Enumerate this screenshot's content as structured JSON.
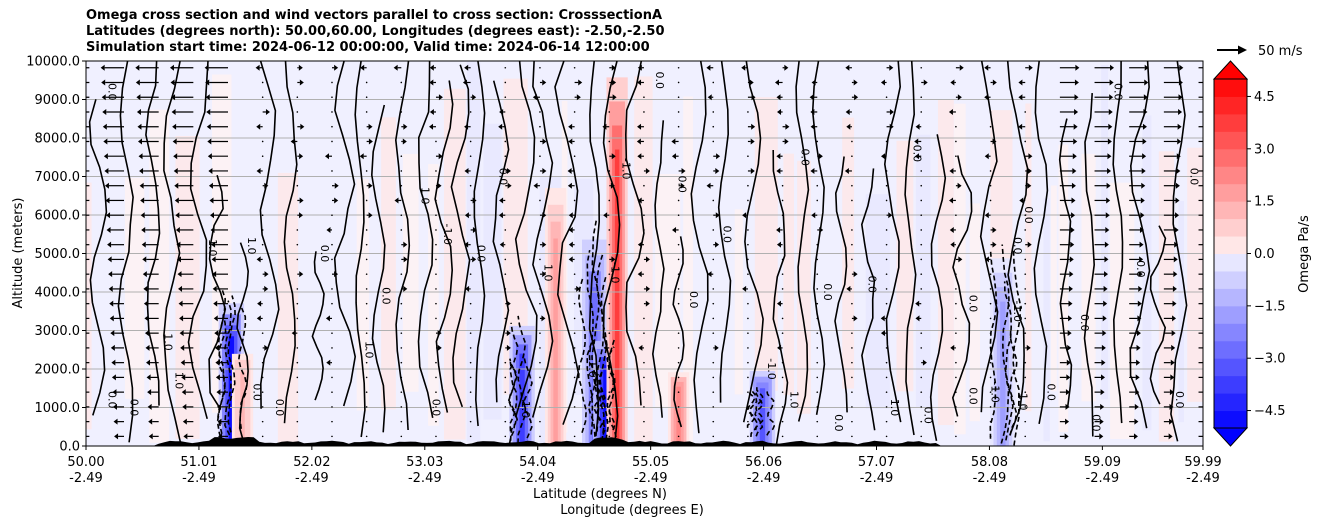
{
  "chart_data": {
    "type": "heatmap",
    "title_lines": [
      "Omega cross section and wind vectors parallel to cross section: CrosssectionA",
      "Latitudes (degrees north): 50.00,60.00, Longitudes (degrees east): -2.50,-2.50",
      "Simulation start time: 2024-06-12 00:00:00, Valid time: 2024-06-14 12:00:00"
    ],
    "ylabel": "Altitude (meters)",
    "xlabel_line1": "Latitude (degrees N)",
    "xlabel_line2": "Longitude (degrees E)",
    "x_range": [
      50.0,
      59.99
    ],
    "ylim": [
      0,
      10000
    ],
    "x_ticks": [
      {
        "lat": 50.0,
        "lat_label": "50.00",
        "lon_label": "-2.49"
      },
      {
        "lat": 51.01,
        "lat_label": "51.01",
        "lon_label": "-2.49"
      },
      {
        "lat": 52.02,
        "lat_label": "52.02",
        "lon_label": "-2.49"
      },
      {
        "lat": 53.03,
        "lat_label": "53.03",
        "lon_label": "-2.49"
      },
      {
        "lat": 54.04,
        "lat_label": "54.04",
        "lon_label": "-2.49"
      },
      {
        "lat": 55.05,
        "lat_label": "55.05",
        "lon_label": "-2.49"
      },
      {
        "lat": 56.06,
        "lat_label": "56.06",
        "lon_label": "-2.49"
      },
      {
        "lat": 57.07,
        "lat_label": "57.07",
        "lon_label": "-2.49"
      },
      {
        "lat": 58.08,
        "lat_label": "58.08",
        "lon_label": "-2.49"
      },
      {
        "lat": 59.09,
        "lat_label": "59.09",
        "lon_label": "-2.49"
      },
      {
        "lat": 59.99,
        "lat_label": "59.99",
        "lon_label": "-2.49"
      }
    ],
    "y_ticks": [
      {
        "value": 0,
        "label": "0.0"
      },
      {
        "value": 1000,
        "label": "1000.0"
      },
      {
        "value": 2000,
        "label": "2000.0"
      },
      {
        "value": 3000,
        "label": "3000.0"
      },
      {
        "value": 4000,
        "label": "4000.0"
      },
      {
        "value": 5000,
        "label": "5000.0"
      },
      {
        "value": 6000,
        "label": "6000.0"
      },
      {
        "value": 7000,
        "label": "7000.0"
      },
      {
        "value": 8000,
        "label": "8000.0"
      },
      {
        "value": 9000,
        "label": "9000.0"
      },
      {
        "value": 10000,
        "label": "10000.0"
      }
    ],
    "colorbar": {
      "label": "Omega Pa/s",
      "range": [
        -5.0,
        5.0
      ],
      "extend": "both",
      "ticks": [
        {
          "value": 4.5,
          "label": "4.5"
        },
        {
          "value": 3.0,
          "label": "3.0"
        },
        {
          "value": 1.5,
          "label": "1.5"
        },
        {
          "value": 0.0,
          "label": "0.0"
        },
        {
          "value": -1.5,
          "label": "−1.5"
        },
        {
          "value": -3.0,
          "label": "−3.0"
        },
        {
          "value": -4.5,
          "label": "−4.5"
        }
      ],
      "colors": {
        "neg": "#0000ff",
        "zero": "#ffffff",
        "pos": "#ff0000"
      }
    },
    "vector_key": {
      "label": "50 m/s"
    },
    "strong_updrafts": [
      {
        "lat": 51.3,
        "min_omega": -4.8,
        "top_alt": 3800
      },
      {
        "lat": 53.9,
        "min_omega": -4.0,
        "top_alt": 3200
      },
      {
        "lat": 54.55,
        "min_omega": -3.0,
        "top_alt": 5500
      },
      {
        "lat": 54.65,
        "min_omega": -5.0,
        "top_alt": 2800
      },
      {
        "lat": 56.05,
        "min_omega": -3.5,
        "top_alt": 2000
      },
      {
        "lat": 58.2,
        "min_omega": -2.0,
        "top_alt": 5000
      }
    ],
    "strong_downdrafts": [
      {
        "lat": 54.75,
        "max_omega": 4.0,
        "top_alt": 10000
      },
      {
        "lat": 54.2,
        "max_omega": 1.8,
        "top_alt": 7000
      },
      {
        "lat": 55.3,
        "max_omega": 2.5,
        "top_alt": 2000
      },
      {
        "lat": 51.4,
        "max_omega": 1.5,
        "top_alt": 2500
      }
    ],
    "contour_labels": [
      {
        "lat": 50.2,
        "alt": 9200,
        "text": "0.0"
      },
      {
        "lat": 50.2,
        "alt": 1200,
        "text": "0.0"
      },
      {
        "lat": 50.4,
        "alt": 1000,
        "text": "0.0"
      },
      {
        "lat": 50.7,
        "alt": 2700,
        "text": "1.0"
      },
      {
        "lat": 50.8,
        "alt": 1700,
        "text": "1.0"
      },
      {
        "lat": 51.1,
        "alt": 5200,
        "text": "-1.0"
      },
      {
        "lat": 51.45,
        "alt": 5200,
        "text": "1.0"
      },
      {
        "lat": 51.5,
        "alt": 1400,
        "text": "0.0"
      },
      {
        "lat": 51.7,
        "alt": 1000,
        "text": "0.0"
      },
      {
        "lat": 52.1,
        "alt": 5000,
        "text": "0.0"
      },
      {
        "lat": 52.5,
        "alt": 2500,
        "text": "1.0"
      },
      {
        "lat": 52.65,
        "alt": 3900,
        "text": "0.0"
      },
      {
        "lat": 53.0,
        "alt": 6500,
        "text": "1.0"
      },
      {
        "lat": 53.1,
        "alt": 1000,
        "text": "0.0"
      },
      {
        "lat": 53.2,
        "alt": 5500,
        "text": "-1.0"
      },
      {
        "lat": 53.5,
        "alt": 5000,
        "text": "0.0"
      },
      {
        "lat": 53.7,
        "alt": 7000,
        "text": "0.0"
      },
      {
        "lat": 53.9,
        "alt": 1000,
        "text": "-1.0"
      },
      {
        "lat": 54.1,
        "alt": 4500,
        "text": "1.0"
      },
      {
        "lat": 54.5,
        "alt": 2000,
        "text": "1.0"
      },
      {
        "lat": 54.7,
        "alt": 4500,
        "text": "-1.0"
      },
      {
        "lat": 54.8,
        "alt": 7200,
        "text": "-1.0"
      },
      {
        "lat": 55.1,
        "alt": 9500,
        "text": "0.0"
      },
      {
        "lat": 55.3,
        "alt": 6800,
        "text": "0.0"
      },
      {
        "lat": 55.4,
        "alt": 3800,
        "text": "0.0"
      },
      {
        "lat": 55.7,
        "alt": 5500,
        "text": "0.0"
      },
      {
        "lat": 56.1,
        "alt": 2000,
        "text": "-1.0"
      },
      {
        "lat": 56.3,
        "alt": 1200,
        "text": "1.0"
      },
      {
        "lat": 56.4,
        "alt": 7500,
        "text": "0.0"
      },
      {
        "lat": 56.6,
        "alt": 4000,
        "text": "0.0"
      },
      {
        "lat": 56.7,
        "alt": 600,
        "text": "0.0"
      },
      {
        "lat": 57.0,
        "alt": 4200,
        "text": "0.0"
      },
      {
        "lat": 57.2,
        "alt": 1000,
        "text": "1.0"
      },
      {
        "lat": 57.5,
        "alt": 800,
        "text": "0.0"
      },
      {
        "lat": 57.4,
        "alt": 7600,
        "text": "0.0"
      },
      {
        "lat": 57.9,
        "alt": 3700,
        "text": "0.0"
      },
      {
        "lat": 57.9,
        "alt": 1300,
        "text": "0.0"
      },
      {
        "lat": 58.1,
        "alt": 1400,
        "text": "-1.0"
      },
      {
        "lat": 58.35,
        "alt": 1200,
        "text": "-1.0"
      },
      {
        "lat": 58.3,
        "alt": 3500,
        "text": "-1.0"
      },
      {
        "lat": 58.3,
        "alt": 5200,
        "text": "0.0"
      },
      {
        "lat": 58.4,
        "alt": 6000,
        "text": "0.0"
      },
      {
        "lat": 58.6,
        "alt": 1400,
        "text": "0.0"
      },
      {
        "lat": 58.9,
        "alt": 3200,
        "text": "0.0"
      },
      {
        "lat": 59.0,
        "alt": 600,
        "text": "0.0"
      },
      {
        "lat": 59.2,
        "alt": 9200,
        "text": "0.0"
      },
      {
        "lat": 59.4,
        "alt": 4600,
        "text": "0.0"
      },
      {
        "lat": 59.75,
        "alt": 1200,
        "text": "0.0"
      },
      {
        "lat": 59.88,
        "alt": 7000,
        "text": "0.0"
      }
    ]
  }
}
